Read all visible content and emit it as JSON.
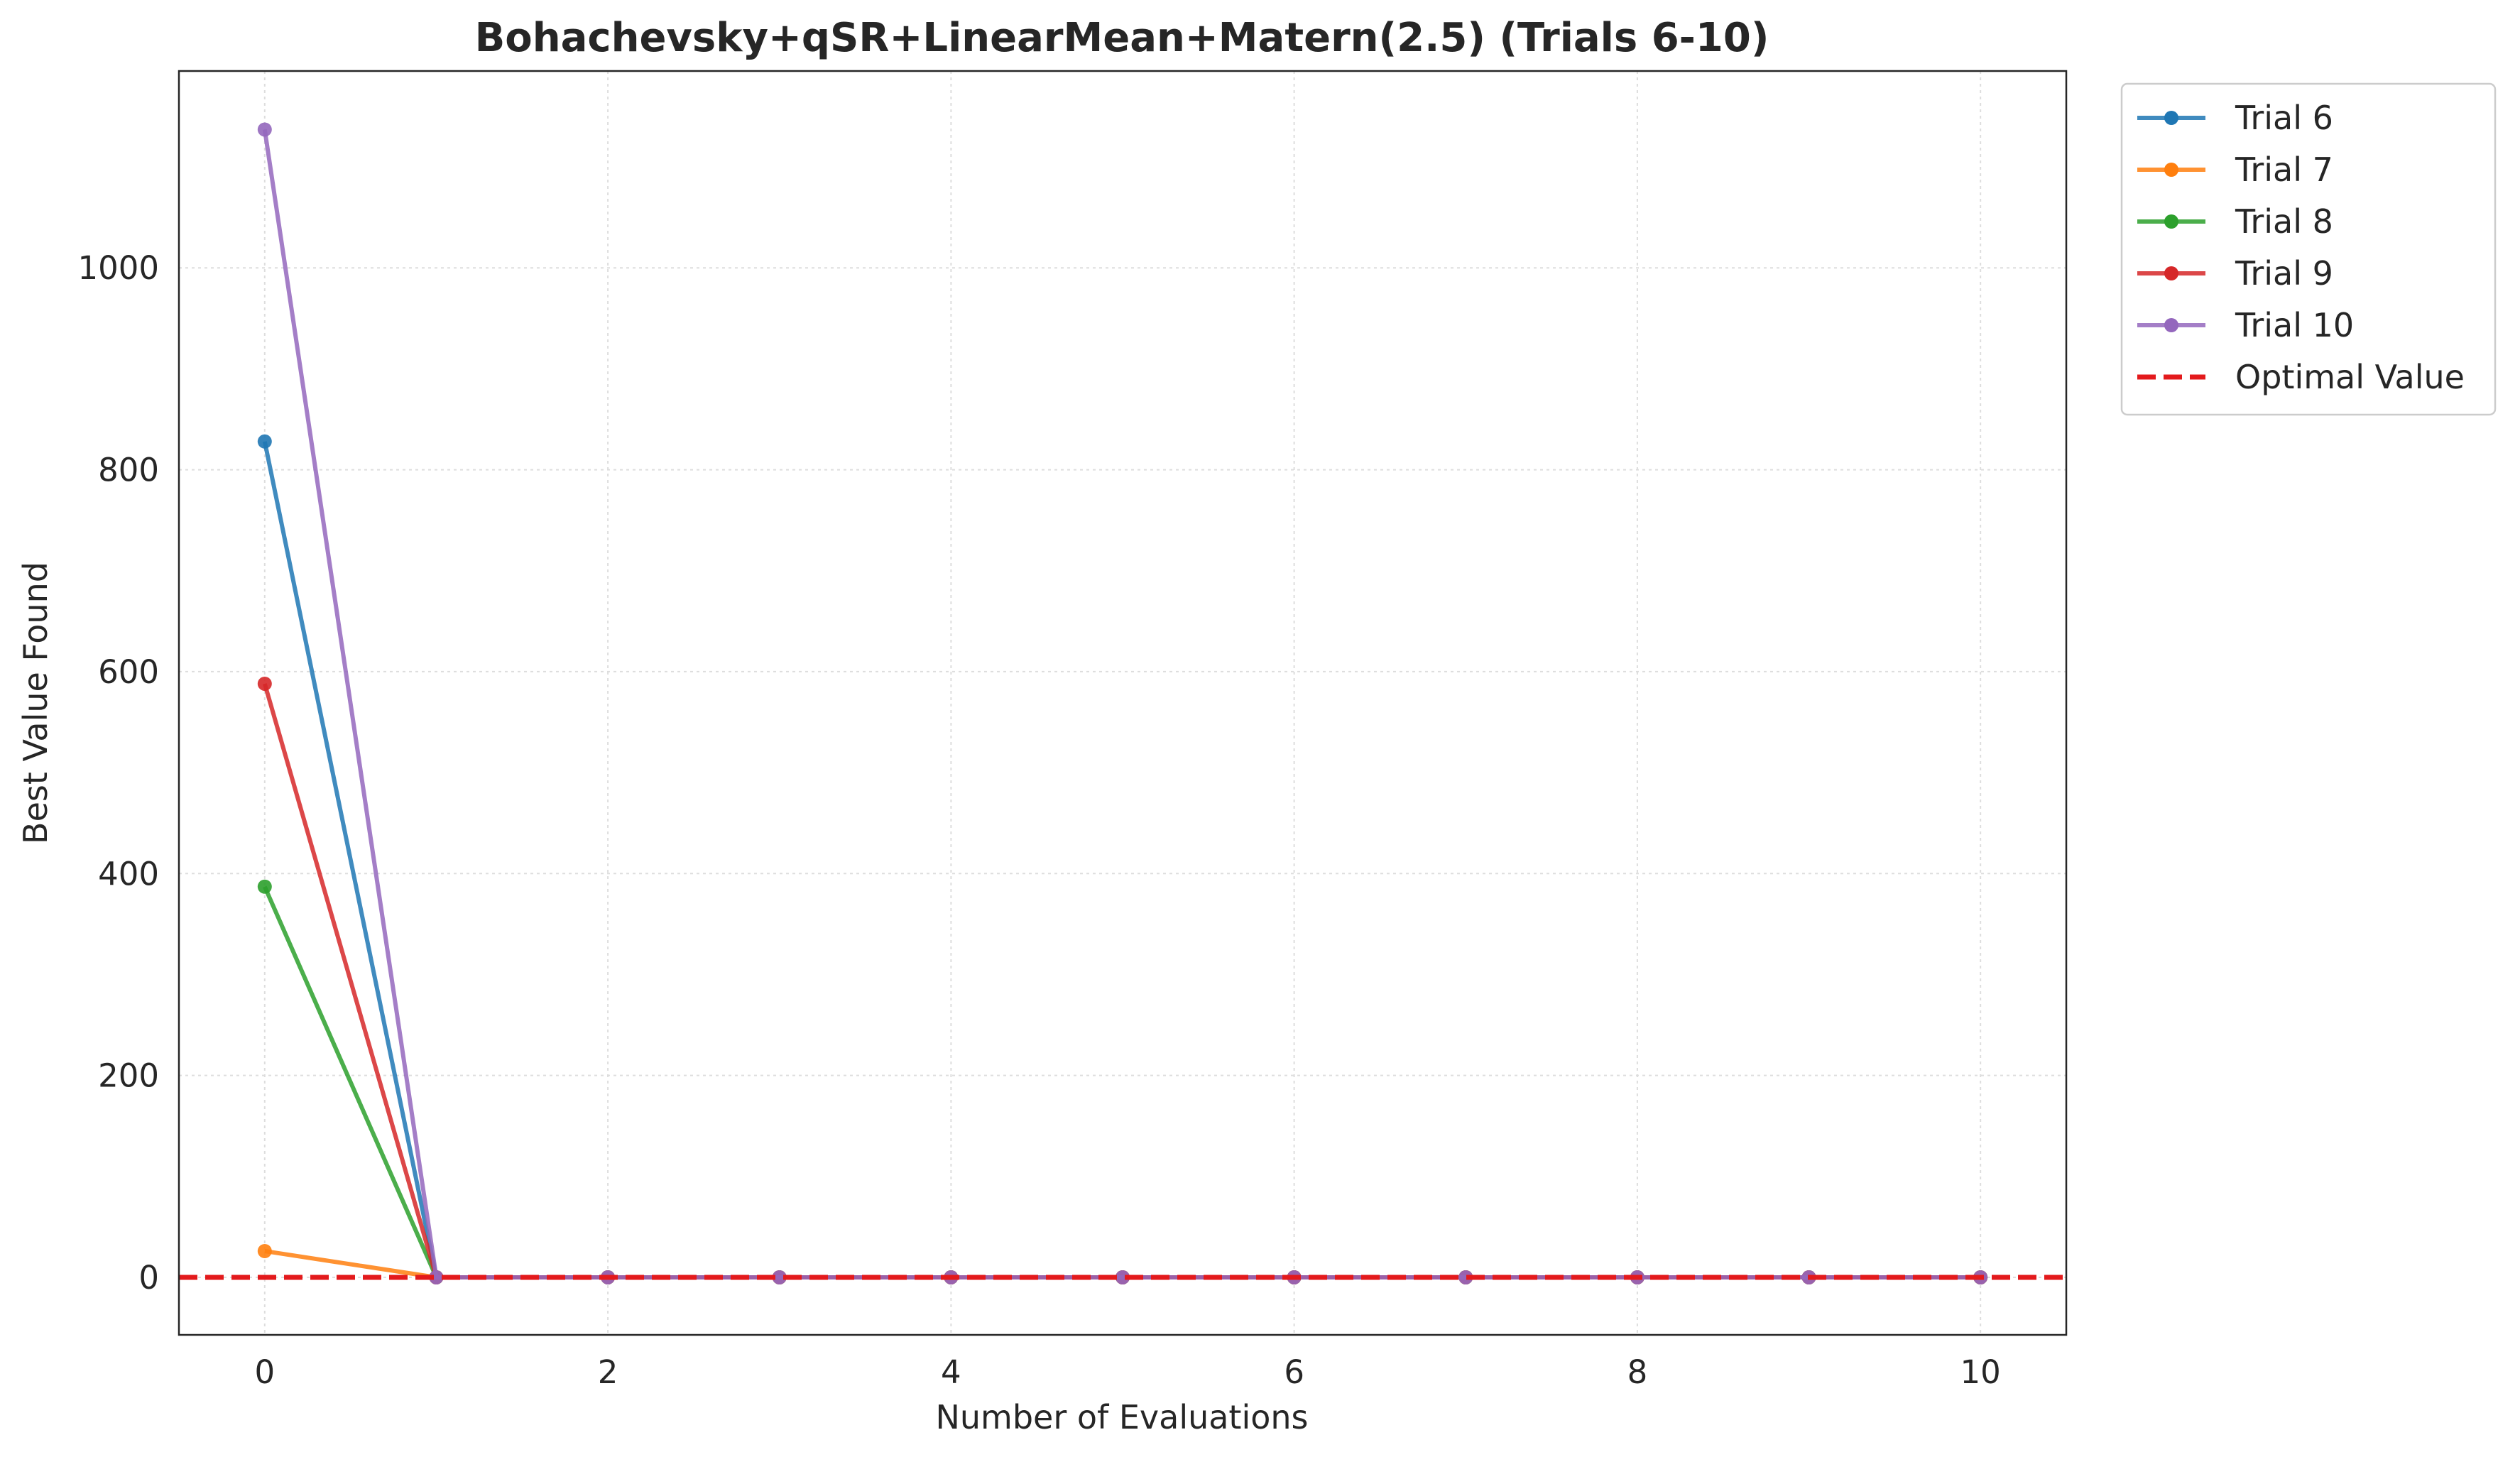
{
  "chart_data": {
    "type": "line",
    "title": "Bohachevsky+qSR+LinearMean+Matern(2.5) (Trials 6-10)",
    "xlabel": "Number of Evaluations",
    "ylabel": "Best Value Found",
    "xlim": [
      -0.5,
      10.5
    ],
    "ylim": [
      -57,
      1195
    ],
    "xticks": [
      0,
      2,
      4,
      6,
      8,
      10
    ],
    "yticks": [
      0,
      200,
      400,
      600,
      800,
      1000
    ],
    "grid": true,
    "legend_position": "outside-top-right",
    "x": [
      0,
      1,
      2,
      3,
      4,
      5,
      6,
      7,
      8,
      9,
      10
    ],
    "series": [
      {
        "name": "Trial 6",
        "color": "#1f77b4",
        "values": [
          828,
          0,
          0,
          0,
          0,
          0,
          0,
          0,
          0,
          0,
          0
        ]
      },
      {
        "name": "Trial 7",
        "color": "#ff7f0e",
        "values": [
          26,
          0,
          0,
          0,
          0,
          0,
          0,
          0,
          0,
          0,
          0
        ]
      },
      {
        "name": "Trial 8",
        "color": "#2ca02c",
        "values": [
          387,
          0,
          0,
          0,
          0,
          0,
          0,
          0,
          0,
          0,
          0
        ]
      },
      {
        "name": "Trial 9",
        "color": "#d62728",
        "values": [
          588,
          0,
          0,
          0,
          0,
          0,
          0,
          0,
          0,
          0,
          0
        ]
      },
      {
        "name": "Trial 10",
        "color": "#9467bd",
        "values": [
          1137,
          0,
          0,
          0,
          0,
          0,
          0,
          0,
          0,
          0,
          0
        ]
      }
    ],
    "reference_line": {
      "name": "Optimal Value",
      "value": 0,
      "color": "#e31a1c",
      "style": "dashed"
    }
  }
}
